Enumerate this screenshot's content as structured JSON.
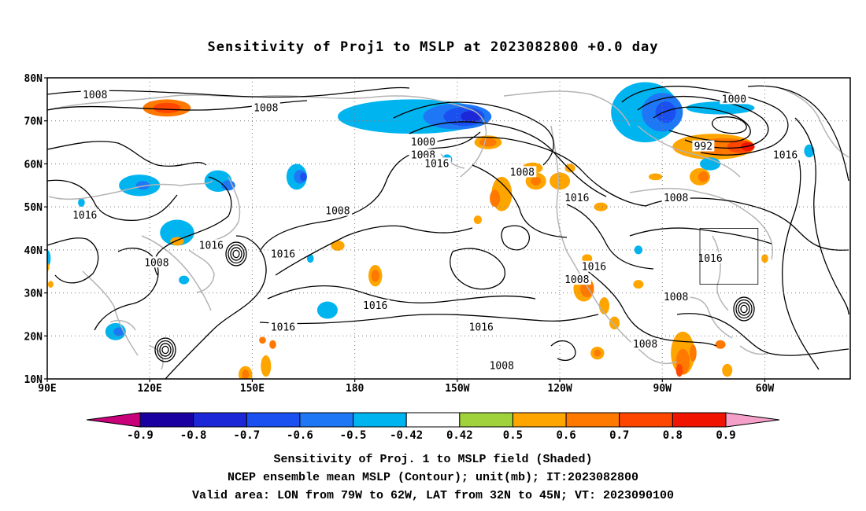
{
  "title": "Sensitivity of Proj1 to MSLP at 2023082800 +0.0 day",
  "map": {
    "lat_labels": [
      "80N",
      "70N",
      "60N",
      "50N",
      "40N",
      "30N",
      "20N",
      "10N"
    ],
    "lon_labels": [
      "90E",
      "120E",
      "150E",
      "180",
      "150W",
      "120W",
      "90W",
      "60W"
    ],
    "lon_range_deg_east": [
      90,
      325
    ],
    "lat_range": [
      10,
      80
    ],
    "grid": "dotted, every 10 degrees latitude and 30 degrees longitude",
    "valid_area_box": {
      "lon_west": -79,
      "lon_east": -62,
      "lat_south": 32,
      "lat_north": 45
    },
    "contour_labels": [
      {
        "text": "1008",
        "lon": 104,
        "lat": 76
      },
      {
        "text": "1008",
        "lon": 154,
        "lat": 73
      },
      {
        "text": "1016",
        "lon": 101,
        "lat": 48
      },
      {
        "text": "1016",
        "lon": 138,
        "lat": 41
      },
      {
        "text": "1008",
        "lon": 122,
        "lat": 37
      },
      {
        "text": "1016",
        "lon": 159,
        "lat": 39
      },
      {
        "text": "1008",
        "lon": 175,
        "lat": 49
      },
      {
        "text": "1000",
        "lon": -160,
        "lat": 65
      },
      {
        "text": "1008",
        "lon": -160,
        "lat": 62
      },
      {
        "text": "1016",
        "lon": -156,
        "lat": 60
      },
      {
        "text": "1016",
        "lon": -174,
        "lat": 27
      },
      {
        "text": "1016",
        "lon": -201,
        "lat": 22
      },
      {
        "text": "1016",
        "lon": -143,
        "lat": 22
      },
      {
        "text": "1008",
        "lon": -131,
        "lat": 58
      },
      {
        "text": "1016",
        "lon": -115,
        "lat": 52
      },
      {
        "text": "1016",
        "lon": -110,
        "lat": 36
      },
      {
        "text": "1008",
        "lon": -115,
        "lat": 33
      },
      {
        "text": "1008",
        "lon": -137,
        "lat": 13
      },
      {
        "text": "1000",
        "lon": -69,
        "lat": 75
      },
      {
        "text": "992",
        "lon": -78,
        "lat": 64
      },
      {
        "text": "1016",
        "lon": -54,
        "lat": 62
      },
      {
        "text": "1008",
        "lon": -86,
        "lat": 52
      },
      {
        "text": "1016",
        "lon": -76,
        "lat": 38
      },
      {
        "text": "1008",
        "lon": -86,
        "lat": 29
      },
      {
        "text": "1008",
        "lon": -95,
        "lat": 18
      }
    ],
    "sensitivity_patches": [
      {
        "lon": 125,
        "lat": 73,
        "rx": 7,
        "ry": 2,
        "v": 0.6
      },
      {
        "lon": 125,
        "lat": 73,
        "rx": 4,
        "ry": 1.2,
        "v": 0.7
      },
      {
        "lon": -163,
        "lat": 71,
        "rx": 22,
        "ry": 4,
        "v": -0.5
      },
      {
        "lon": -150,
        "lat": 71,
        "rx": 10,
        "ry": 3,
        "v": -0.6
      },
      {
        "lon": -148,
        "lat": 71,
        "rx": 6,
        "ry": 2.2,
        "v": -0.7
      },
      {
        "lon": -146,
        "lat": 71,
        "rx": 3,
        "ry": 1.3,
        "v": -0.8
      },
      {
        "lon": -95,
        "lat": 72,
        "rx": 10,
        "ry": 7,
        "v": -0.5
      },
      {
        "lon": -90,
        "lat": 72,
        "rx": 6,
        "ry": 4.5,
        "v": -0.6
      },
      {
        "lon": -89,
        "lat": 72,
        "rx": 3,
        "ry": 2.5,
        "v": -0.7
      },
      {
        "lon": -73,
        "lat": 73,
        "rx": 10,
        "ry": 1.5,
        "v": -0.5
      },
      {
        "lon": -75,
        "lat": 64,
        "rx": 12,
        "ry": 3,
        "v": 0.5
      },
      {
        "lon": -72,
        "lat": 64,
        "rx": 8,
        "ry": 2,
        "v": 0.6
      },
      {
        "lon": -67,
        "lat": 64,
        "rx": 4,
        "ry": 1.5,
        "v": 0.7
      },
      {
        "lon": -65,
        "lat": 64,
        "rx": 2,
        "ry": 1,
        "v": 0.8
      },
      {
        "lon": -79,
        "lat": 57,
        "rx": 3,
        "ry": 2,
        "v": 0.5
      },
      {
        "lon": -78,
        "lat": 57,
        "rx": 1.5,
        "ry": 1.2,
        "v": 0.6
      },
      {
        "lon": -76,
        "lat": 60,
        "rx": 3,
        "ry": 1.5,
        "v": -0.5
      },
      {
        "lon": -141,
        "lat": 65,
        "rx": 4,
        "ry": 1.6,
        "v": 0.5
      },
      {
        "lon": -141,
        "lat": 65,
        "rx": 2.5,
        "ry": 1,
        "v": 0.6
      },
      {
        "lon": -128,
        "lat": 59,
        "rx": 3,
        "ry": 1.3,
        "v": 0.5
      },
      {
        "lon": -137,
        "lat": 53,
        "rx": 3,
        "ry": 4,
        "v": 0.5
      },
      {
        "lon": -139,
        "lat": 52,
        "rx": 1.5,
        "ry": 2,
        "v": 0.6
      },
      {
        "lon": -127,
        "lat": 56,
        "rx": 3,
        "ry": 2,
        "v": 0.5
      },
      {
        "lon": -127,
        "lat": 56,
        "rx": 1.5,
        "ry": 1,
        "v": 0.6
      },
      {
        "lon": -120,
        "lat": 56,
        "rx": 3,
        "ry": 2,
        "v": 0.5
      },
      {
        "lon": -117,
        "lat": 59,
        "rx": 1.5,
        "ry": 1,
        "v": 0.5
      },
      {
        "lon": -153,
        "lat": 61,
        "rx": 1.5,
        "ry": 1.2,
        "v": -0.5
      },
      {
        "lon": -144,
        "lat": 47,
        "rx": 1.2,
        "ry": 1,
        "v": 0.5
      },
      {
        "lon": -108,
        "lat": 50,
        "rx": 2,
        "ry": 1,
        "v": 0.5
      },
      {
        "lon": 117,
        "lat": 55,
        "rx": 6,
        "ry": 2.5,
        "v": -0.5
      },
      {
        "lon": 118,
        "lat": 55,
        "rx": 2,
        "ry": 1,
        "v": -0.6
      },
      {
        "lon": 140,
        "lat": 56,
        "rx": 4,
        "ry": 2.5,
        "v": -0.5
      },
      {
        "lon": 143,
        "lat": 55,
        "rx": 2,
        "ry": 1.2,
        "v": -0.6
      },
      {
        "lon": 163,
        "lat": 57,
        "rx": 3,
        "ry": 3,
        "v": -0.5
      },
      {
        "lon": 164,
        "lat": 57,
        "rx": 1.8,
        "ry": 1.6,
        "v": -0.6
      },
      {
        "lon": 165,
        "lat": 57,
        "rx": 1,
        "ry": 1,
        "v": -0.7
      },
      {
        "lon": 100,
        "lat": 51,
        "rx": 1,
        "ry": 1,
        "v": -0.5
      },
      {
        "lon": 128,
        "lat": 44,
        "rx": 5,
        "ry": 3,
        "v": -0.5
      },
      {
        "lon": 128,
        "lat": 42,
        "rx": 2,
        "ry": 1,
        "v": 0.5
      },
      {
        "lon": 130,
        "lat": 33,
        "rx": 1.5,
        "ry": 1,
        "v": -0.5
      },
      {
        "lon": 90,
        "lat": 38,
        "rx": 1,
        "ry": 2,
        "v": -0.5
      },
      {
        "lon": 90,
        "lat": 36,
        "rx": 0.6,
        "ry": 1,
        "v": 0.5
      },
      {
        "lon": 91,
        "lat": 32,
        "rx": 0.8,
        "ry": 0.8,
        "v": 0.5
      },
      {
        "lon": 110,
        "lat": 21,
        "rx": 3,
        "ry": 2,
        "v": -0.5
      },
      {
        "lon": 111,
        "lat": 21,
        "rx": 1.6,
        "ry": 1,
        "v": -0.6
      },
      {
        "lon": 186,
        "lat": 34,
        "rx": 2,
        "ry": 2.5,
        "v": 0.5
      },
      {
        "lon": 186,
        "lat": 34,
        "rx": 1.2,
        "ry": 1.4,
        "v": 0.6
      },
      {
        "lon": 175,
        "lat": 41,
        "rx": 2,
        "ry": 1.2,
        "v": 0.5
      },
      {
        "lon": 172,
        "lat": 26,
        "rx": 3,
        "ry": 2,
        "v": -0.5
      },
      {
        "lon": 167,
        "lat": 38,
        "rx": 1,
        "ry": 1,
        "v": -0.5
      },
      {
        "lon": 148,
        "lat": 11,
        "rx": 2,
        "ry": 2,
        "v": 0.5
      },
      {
        "lon": 148,
        "lat": 11,
        "rx": 1,
        "ry": 1.2,
        "v": 0.6
      },
      {
        "lon": 154,
        "lat": 13,
        "rx": 1.5,
        "ry": 2.5,
        "v": 0.5
      },
      {
        "lon": 156,
        "lat": 18,
        "rx": 1,
        "ry": 1,
        "v": 0.6
      },
      {
        "lon": 153,
        "lat": 19,
        "rx": 1,
        "ry": 0.8,
        "v": 0.6
      },
      {
        "lon": -97,
        "lat": 40,
        "rx": 1.2,
        "ry": 1,
        "v": -0.5
      },
      {
        "lon": -112,
        "lat": 38,
        "rx": 1.5,
        "ry": 1,
        "v": 0.5
      },
      {
        "lon": -112,
        "lat": 36,
        "rx": 1,
        "ry": 0.8,
        "v": 0.5
      },
      {
        "lon": -113,
        "lat": 31,
        "rx": 3,
        "ry": 3,
        "v": 0.5
      },
      {
        "lon": -112,
        "lat": 31,
        "rx": 2,
        "ry": 2,
        "v": 0.6
      },
      {
        "lon": -107,
        "lat": 27,
        "rx": 1.5,
        "ry": 2,
        "v": 0.5
      },
      {
        "lon": -104,
        "lat": 23,
        "rx": 1.5,
        "ry": 1.5,
        "v": 0.5
      },
      {
        "lon": -109,
        "lat": 16,
        "rx": 2,
        "ry": 1.5,
        "v": 0.5
      },
      {
        "lon": -109,
        "lat": 16,
        "rx": 1,
        "ry": 0.8,
        "v": 0.6
      },
      {
        "lon": -97,
        "lat": 32,
        "rx": 1.5,
        "ry": 1,
        "v": 0.5
      },
      {
        "lon": -84,
        "lat": 16,
        "rx": 3.5,
        "ry": 5,
        "v": 0.5
      },
      {
        "lon": -84,
        "lat": 14,
        "rx": 2,
        "ry": 3,
        "v": 0.6
      },
      {
        "lon": -85,
        "lat": 12,
        "rx": 1,
        "ry": 1.5,
        "v": 0.7
      },
      {
        "lon": -81,
        "lat": 16,
        "rx": 1,
        "ry": 2,
        "v": 0.6
      },
      {
        "lon": -73,
        "lat": 18,
        "rx": 1.5,
        "ry": 1,
        "v": 0.6
      },
      {
        "lon": -71,
        "lat": 12,
        "rx": 1.5,
        "ry": 1.5,
        "v": 0.5
      },
      {
        "lon": -60,
        "lat": 38,
        "rx": 1,
        "ry": 1,
        "v": 0.5
      },
      {
        "lon": -47,
        "lat": 63,
        "rx": 1.5,
        "ry": 1.5,
        "v": -0.5
      },
      {
        "lon": -92,
        "lat": 57,
        "rx": 2,
        "ry": 0.8,
        "v": 0.5
      }
    ]
  },
  "colorbar": {
    "labels": [
      "-0.9",
      "-0.8",
      "-0.7",
      "-0.6",
      "-0.5",
      "-0.42",
      "0.42",
      "0.5",
      "0.6",
      "0.7",
      "0.8",
      "0.9"
    ],
    "colors": [
      "#1a00a0",
      "#1c28d8",
      "#1a50f0",
      "#1e78f5",
      "#00b4f0",
      "#ffffff",
      "#a0d23c",
      "#ffa500",
      "#ff7800",
      "#ff4600",
      "#f01400"
    ],
    "low_end_color": "#c8007a",
    "high_end_color": "#f5a0c8"
  },
  "captions": {
    "line1": "Sensitivity of Proj. 1 to MSLP field (Shaded)",
    "line2": "NCEP ensemble mean MSLP (Contour); unit(mb); IT:2023082800",
    "line3": "Valid area: LON from 79W to 62W, LAT from 32N to 45N; VT: 2023090100"
  }
}
